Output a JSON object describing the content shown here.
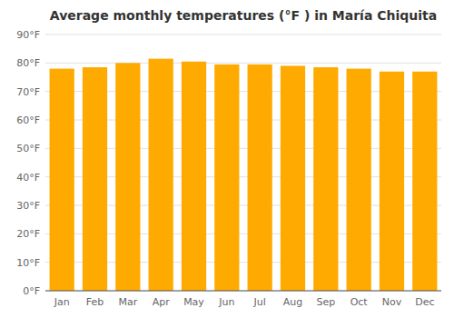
{
  "chart_data": {
    "type": "bar",
    "title": "Average monthly temperatures (°F ) in María Chiquita",
    "categories": [
      "Jan",
      "Feb",
      "Mar",
      "Apr",
      "May",
      "Jun",
      "Jul",
      "Aug",
      "Sep",
      "Oct",
      "Nov",
      "Dec"
    ],
    "values": [
      78,
      78.5,
      80,
      81.5,
      80.5,
      79.5,
      79.5,
      79,
      78.5,
      78,
      77,
      77
    ],
    "color": "#FFAA00",
    "ylim": [
      0,
      90
    ],
    "yticks": [
      {
        "value": 0,
        "label": "0°F"
      },
      {
        "value": 10,
        "label": "10°F"
      },
      {
        "value": 20,
        "label": "20°F"
      },
      {
        "value": 30,
        "label": "30°F"
      },
      {
        "value": 40,
        "label": "40°F"
      },
      {
        "value": 50,
        "label": "50°F"
      },
      {
        "value": 60,
        "label": "60°F"
      },
      {
        "value": 70,
        "label": "70°F"
      },
      {
        "value": 80,
        "label": "80°F"
      },
      {
        "value": 90,
        "label": "90°F"
      }
    ],
    "grid": true
  }
}
